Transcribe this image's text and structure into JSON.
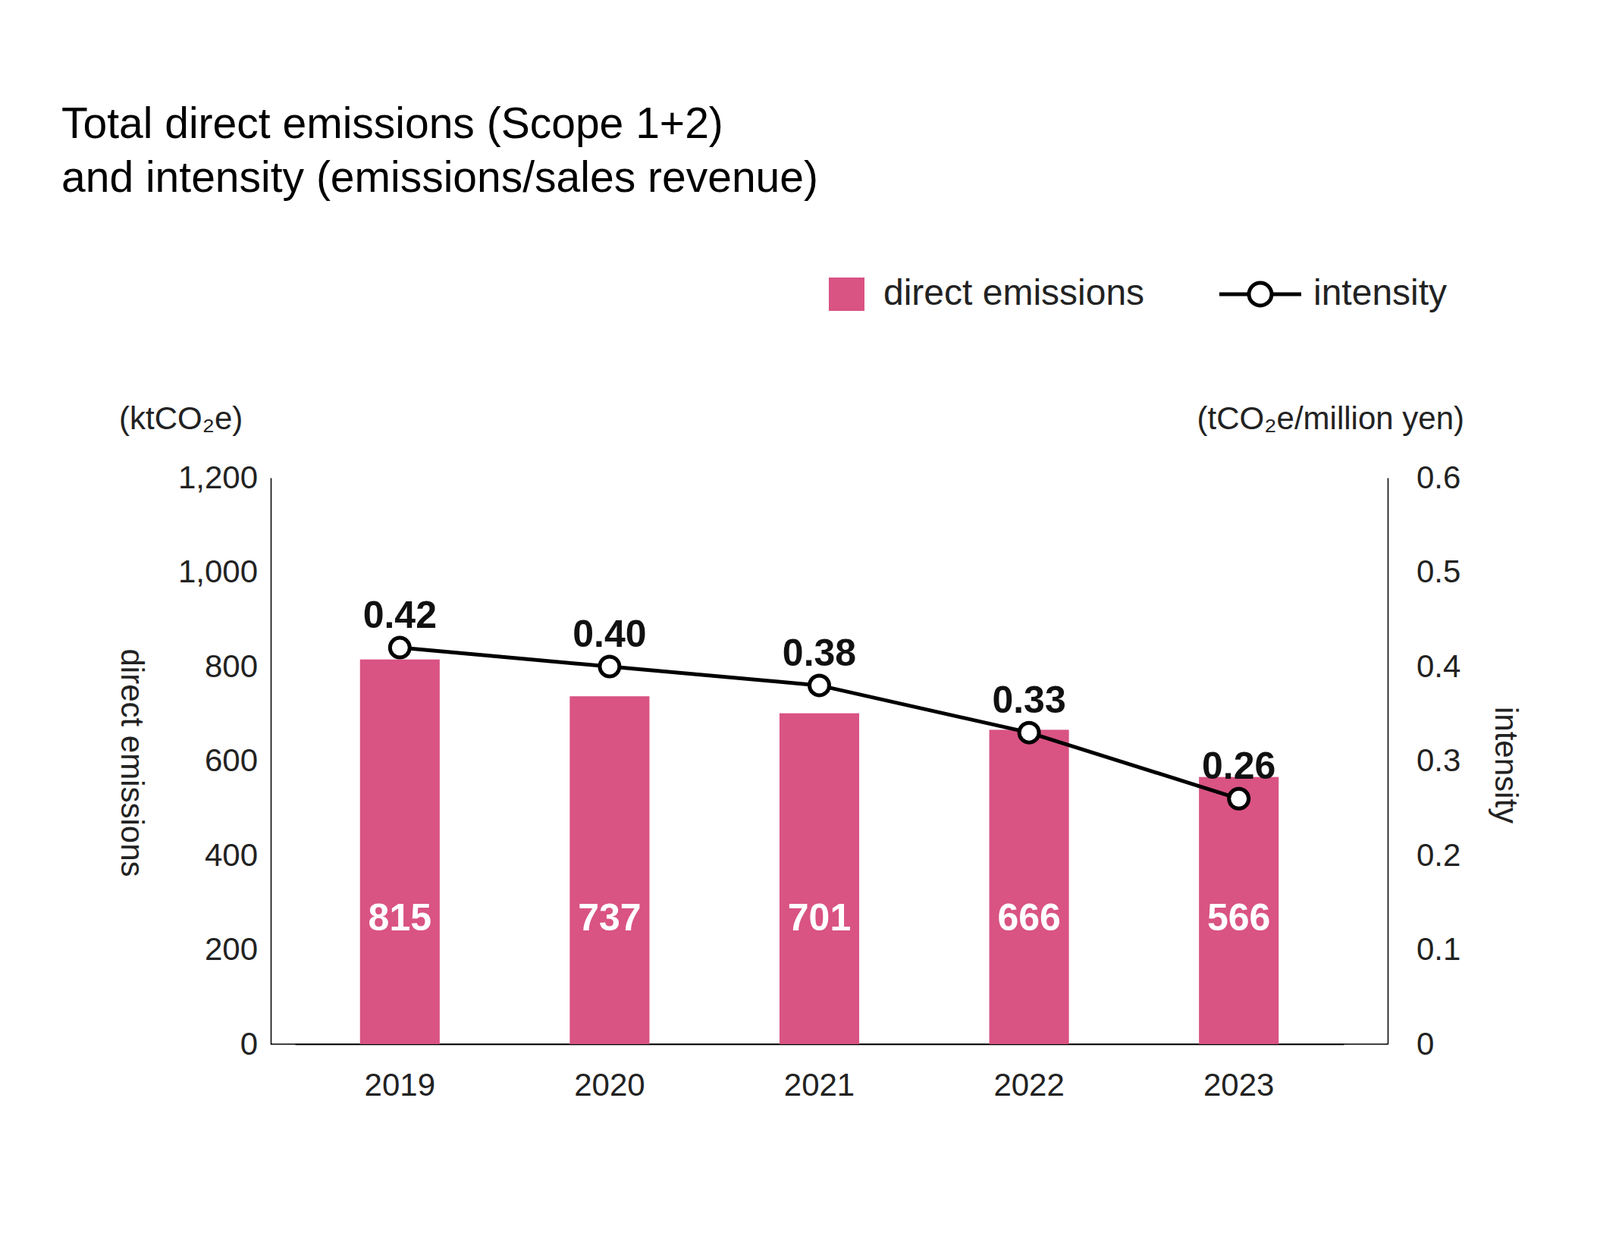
{
  "chart_data": {
    "type": "bar",
    "title": [
      "Total direct emissions (Scope 1+2)",
      "and intensity (emissions/sales revenue)"
    ],
    "ylabel": "direct emissions",
    "y2label": "intensity",
    "y_unit_label": "(ktCO₂e)",
    "y2_unit_label": "(tCO₂e/million yen)",
    "categories": [
      "2019",
      "2020",
      "2021",
      "2022",
      "2023"
    ],
    "series": [
      {
        "name": "direct emissions",
        "type": "bar",
        "color": "#d95383",
        "values": [
          815,
          737,
          701,
          666,
          566
        ]
      },
      {
        "name": "intensity",
        "type": "line",
        "axis": "y2",
        "color": "#000000",
        "marker": "circle",
        "values": [
          0.42,
          0.4,
          0.38,
          0.33,
          0.26
        ],
        "value_labels": [
          "0.42",
          "0.40",
          "0.38",
          "0.33",
          "0.26"
        ]
      }
    ],
    "ylim": [
      0,
      1200
    ],
    "yticks": [
      0,
      200,
      400,
      600,
      800,
      {
        "value": 1000,
        "label": "1,000"
      },
      {
        "value": 1200,
        "label": "1,200"
      }
    ],
    "y2lim": [
      0,
      0.6
    ],
    "y2ticks": [
      0,
      0.1,
      0.2,
      0.3,
      0.4,
      0.5,
      0.6
    ],
    "data_labels": true,
    "legend": "top-right",
    "grid": false
  }
}
